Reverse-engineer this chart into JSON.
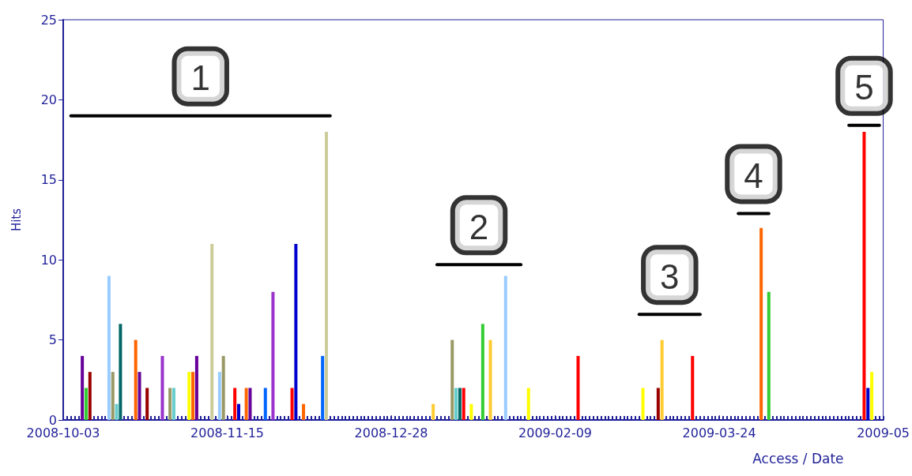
{
  "chart_data": {
    "type": "bar",
    "xlabel": "Access / Date",
    "ylabel": "Hits",
    "series": [
      {
        "x": [
          "2008-10-08",
          "2008-10-09",
          "2008-10-10",
          "2008-10-15",
          "2008-10-16",
          "2008-10-17",
          "2008-10-18",
          "2008-10-22",
          "2008-10-23",
          "2008-10-25",
          "2008-10-29",
          "2008-10-31",
          "2008-11-01",
          "2008-11-05",
          "2008-11-06",
          "2008-11-07",
          "2008-11-11",
          "2008-11-13",
          "2008-11-14",
          "2008-11-17",
          "2008-11-18",
          "2008-11-20",
          "2008-11-21",
          "2008-11-25",
          "2008-11-27",
          "2008-12-02",
          "2008-12-03",
          "2008-12-05",
          "2008-12-10",
          "2008-12-11",
          "2009-01-08",
          "2009-01-13",
          "2009-01-14",
          "2009-01-15",
          "2009-01-16",
          "2009-01-18",
          "2009-01-21",
          "2009-01-23",
          "2009-01-27",
          "2009-02-02",
          "2009-02-15",
          "2009-03-04",
          "2009-03-08",
          "2009-03-09",
          "2009-03-17",
          "2009-04-04",
          "2009-04-06",
          "2009-05-01",
          "2009-05-02",
          "2009-05-03"
        ],
        "values": [
          4,
          2,
          3,
          9,
          3,
          1,
          6,
          5,
          3,
          2,
          4,
          2,
          2,
          3,
          3,
          4,
          11,
          3,
          4,
          2,
          1,
          2,
          2,
          2,
          8,
          2,
          11,
          1,
          4,
          18,
          1,
          5,
          2,
          2,
          2,
          1,
          6,
          5,
          9,
          2,
          4,
          2,
          2,
          5,
          4,
          12,
          8,
          18,
          2,
          3
        ],
        "colors": [
          "#660099",
          "#33cc33",
          "#990000",
          "#99ccff",
          "#999966",
          "#66cccc",
          "#006666",
          "#ff6600",
          "#660099",
          "#990000",
          "#9933cc",
          "#999966",
          "#66cccc",
          "#ffff00",
          "#ff6600",
          "#660099",
          "#cccc99",
          "#99ccff",
          "#999966",
          "#ff0000",
          "#0000cc",
          "#ff6600",
          "#660099",
          "#0066ff",
          "#9933cc",
          "#ff0000",
          "#0000cc",
          "#ff6600",
          "#0066ff",
          "#cccc99",
          "#ffcc33",
          "#999966",
          "#66cccc",
          "#006666",
          "#ff0000",
          "#ffff00",
          "#33cc33",
          "#ffcc33",
          "#99ccff",
          "#ffff00",
          "#ff0000",
          "#ffff00",
          "#990000",
          "#ffcc33",
          "#ff0000",
          "#ff6600",
          "#33cc33",
          "#ff0000",
          "#0000cc",
          "#ffff00"
        ]
      },
      {
        "type": "line",
        "x": [
          "2008-10-05",
          "2008-12-12"
        ],
        "values": [
          19,
          19
        ],
        "color": "#000000"
      },
      {
        "type": "line",
        "x": [
          "2009-01-09",
          "2009-01-31"
        ],
        "values": [
          9.7,
          9.7
        ],
        "color": "#000000"
      },
      {
        "type": "line",
        "x": [
          "2009-03-03",
          "2009-03-19"
        ],
        "values": [
          6.6,
          6.6
        ],
        "color": "#000000"
      },
      {
        "type": "line",
        "x": [
          "2009-03-29",
          "2009-04-06"
        ],
        "values": [
          12.9,
          12.9
        ],
        "color": "#000000"
      },
      {
        "type": "line",
        "x": [
          "2009-04-27",
          "2009-05-05"
        ],
        "values": [
          18.4,
          18.4
        ],
        "color": "#000000"
      }
    ],
    "xlim": [
      "2008-10-03",
      "2009-05-06"
    ],
    "xticks": [
      "2008-10-03",
      "2008-11-15",
      "2008-12-28",
      "2009-02-09",
      "2009-03-24",
      {
        "value": "2009-05-06",
        "label": "2009-05"
      }
    ],
    "ylim": [
      0,
      25
    ],
    "yticks": [
      0,
      5,
      10,
      15,
      20,
      25
    ],
    "grid": false,
    "marker": "none",
    "line_style": "solid",
    "annotations": [
      "1",
      "2",
      "3",
      "4",
      "5"
    ]
  }
}
